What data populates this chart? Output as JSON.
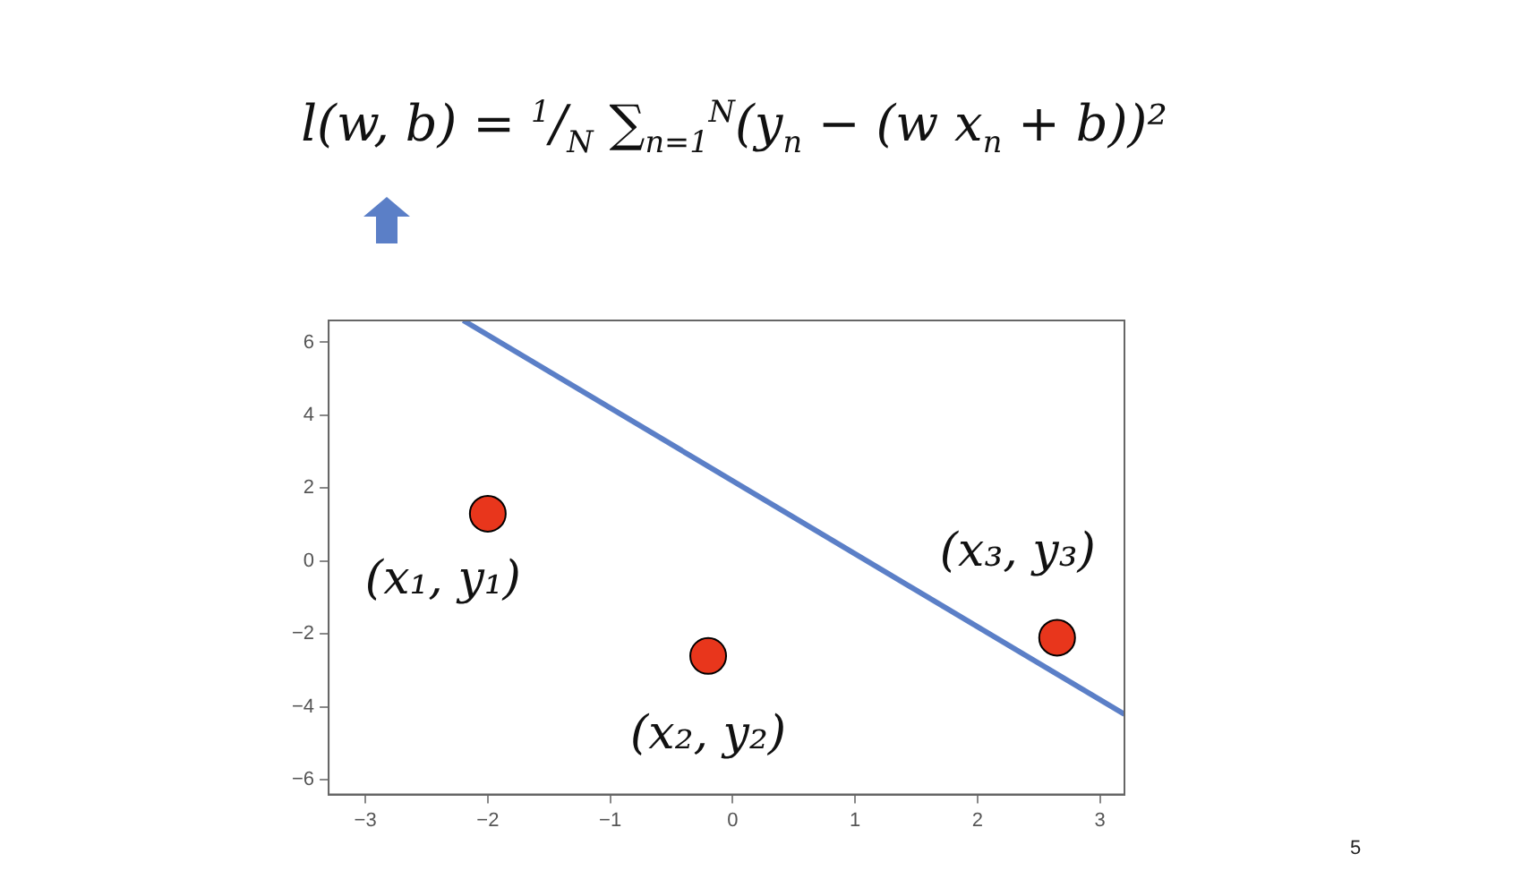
{
  "chart_data": {
    "type": "scatter",
    "title": "l(w, b) = $^{1}$/$_{N}$ ∑$_{n=1}$$^{N}$(y$_{n}$ − (w x$_{n}$ + b))²",
    "series": [
      {
        "color": "#e8361c",
        "x": [
          -2,
          -0.2,
          2.65
        ],
        "values": [
          1.3,
          -2.6,
          -2.1
        ],
        "marker": "circle"
      },
      {
        "type": "line",
        "color": "#5b7fc7",
        "x": [
          -2.2,
          3.2
        ],
        "values": [
          6.6,
          -4.2
        ],
        "marker": "none",
        "line_style": "solid"
      }
    ],
    "xlim": [
      -3.3,
      3.2
    ],
    "ylim": [
      -6.4,
      6.6
    ],
    "xticks": [
      {
        "value": -3,
        "label": "−3"
      },
      {
        "value": -2,
        "label": "−2"
      },
      {
        "value": -1,
        "label": "−1"
      },
      0,
      1,
      2,
      3
    ],
    "yticks": [
      {
        "value": -6,
        "label": "−6"
      },
      {
        "value": -4,
        "label": "−4"
      },
      {
        "value": -2,
        "label": "−2"
      },
      0,
      2,
      4,
      6
    ],
    "grid": false,
    "legend": false,
    "annotations": [
      {
        "text": "(x₁, y₁)",
        "x": -2,
        "y": 1.3
      },
      {
        "text": "(x₂, y₂)",
        "x": -0.2,
        "y": -2.6
      },
      {
        "text": "(x₃, y₃)",
        "x": 2.65,
        "y": -2.1
      },
      "5"
    ]
  }
}
